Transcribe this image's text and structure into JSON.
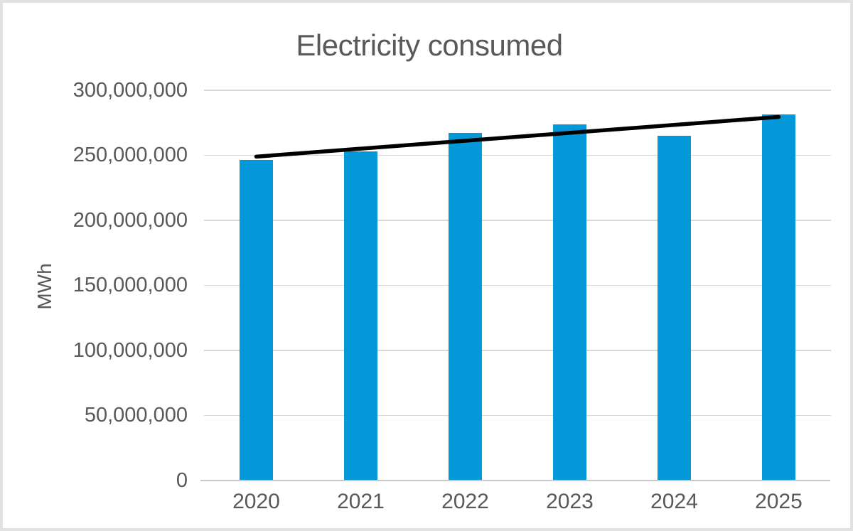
{
  "chart_data": {
    "type": "bar",
    "title": "Electricity consumed",
    "ylabel": "MWh",
    "xlabel": "",
    "categories": [
      "2020",
      "2021",
      "2022",
      "2023",
      "2024",
      "2025"
    ],
    "series": [
      {
        "name": "Electricity consumed",
        "type": "bar",
        "values": [
          246500000,
          253000000,
          267000000,
          274000000,
          265000000,
          281500000
        ]
      },
      {
        "name": "Linear trendline",
        "type": "line",
        "points": [
          {
            "category": "2020",
            "value": 249000000
          },
          {
            "category": "2025",
            "value": 279500000
          }
        ]
      }
    ],
    "ylim": [
      0,
      300000000
    ],
    "ytick_step": 50000000,
    "ytick_labels": [
      "0",
      "50,000,000",
      "100,000,000",
      "150,000,000",
      "200,000,000",
      "250,000,000",
      "300,000,000"
    ],
    "grid": true,
    "legend": "none",
    "colors": {
      "bar": "#0598d9",
      "trendline": "#000000",
      "title_text": "#595959",
      "axis_text": "#595959",
      "gridline": "#d9d9d9",
      "axis_line": "#c9c9c9"
    }
  }
}
